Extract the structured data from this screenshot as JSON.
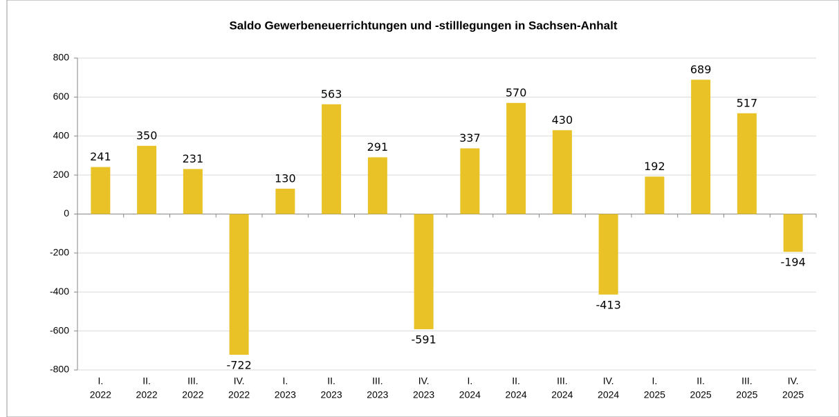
{
  "chart_data": {
    "type": "bar",
    "title": "Saldo Gewerbeneuerrichtungen und -stilllegungen in Sachsen-Anhalt",
    "categories": [
      [
        "I.",
        "2022"
      ],
      [
        "II.",
        "2022"
      ],
      [
        "III.",
        "2022"
      ],
      [
        "IV.",
        "2022"
      ],
      [
        "I.",
        "2023"
      ],
      [
        "II.",
        "2023"
      ],
      [
        "III.",
        "2023"
      ],
      [
        "IV.",
        "2023"
      ],
      [
        "I.",
        "2024"
      ],
      [
        "II.",
        "2024"
      ],
      [
        "III.",
        "2024"
      ],
      [
        "IV.",
        "2024"
      ],
      [
        "I.",
        "2025"
      ],
      [
        "II.",
        "2025"
      ],
      [
        "III.",
        "2025"
      ],
      [
        "IV.",
        "2025"
      ]
    ],
    "values": [
      241,
      350,
      231,
      -722,
      130,
      563,
      291,
      -591,
      337,
      570,
      430,
      -413,
      192,
      689,
      517,
      -194
    ],
    "color": "#e8c227",
    "ylim": [
      -800,
      800
    ],
    "yticks": [
      -800,
      -600,
      -400,
      -200,
      0,
      200,
      400,
      600,
      800
    ],
    "grid": true
  }
}
